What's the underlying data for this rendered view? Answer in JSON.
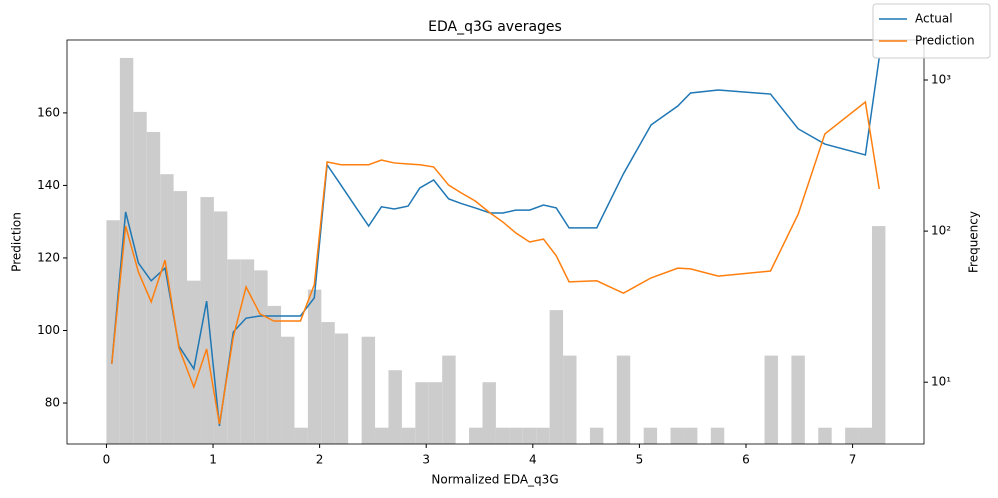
{
  "chart_data": {
    "type": "line",
    "title": "EDA_q3G averages",
    "x_label": "Normalized EDA_q3G",
    "y_label": "Prediction",
    "y2_label": "Frequency",
    "xlim": [
      -0.37,
      7.67
    ],
    "ylim": [
      68.7,
      180.1
    ],
    "y2lim": [
      3.9,
      1840
    ],
    "y2_log": true,
    "xticks": [
      0,
      1,
      2,
      3,
      4,
      5,
      6,
      7
    ],
    "yticks": [
      80,
      100,
      120,
      140,
      160
    ],
    "y2ticks": [
      {
        "value": 10,
        "label": "10¹"
      },
      {
        "value": 100,
        "label": "10²"
      },
      {
        "value": 1000,
        "label": "10³"
      }
    ],
    "legend_position": "top-right",
    "x": [
      0.05,
      0.18,
      0.3,
      0.42,
      0.55,
      0.68,
      0.82,
      0.94,
      1.06,
      1.19,
      1.31,
      1.44,
      1.57,
      1.82,
      1.95,
      2.07,
      2.2,
      2.33,
      2.46,
      2.58,
      2.7,
      2.83,
      2.94,
      3.07,
      3.21,
      3.33,
      3.46,
      3.6,
      3.72,
      3.84,
      3.97,
      4.1,
      4.22,
      4.34,
      4.6,
      4.85,
      5.11,
      5.36,
      5.48,
      5.74,
      6.23,
      6.49,
      6.74,
      7.12,
      7.25
    ],
    "series": [
      {
        "name": "Actual",
        "color": "#1f77b4",
        "values": [
          90.8,
          132.7,
          118.6,
          113.7,
          117.2,
          95.7,
          89.4,
          108.1,
          73.7,
          99.6,
          103.4,
          104.0,
          104.0,
          104.0,
          109.0,
          145.7,
          140.1,
          134.4,
          128.8,
          134.1,
          133.5,
          134.3,
          139.3,
          141.5,
          136.3,
          135.0,
          133.8,
          132.4,
          132.4,
          133.2,
          133.2,
          134.6,
          133.8,
          128.3,
          128.3,
          143.2,
          156.7,
          161.9,
          165.5,
          166.3,
          165.2,
          155.6,
          151.4,
          148.4,
          175.2
        ]
      },
      {
        "name": "Prediction",
        "color": "#ff7f0e",
        "values": [
          90.8,
          128.8,
          116.1,
          107.9,
          119.4,
          95.2,
          84.4,
          94.9,
          74.2,
          98.2,
          112.0,
          104.6,
          102.6,
          102.6,
          112.6,
          146.5,
          145.7,
          145.7,
          145.7,
          147.0,
          146.2,
          145.9,
          145.7,
          145.1,
          140.1,
          137.9,
          135.7,
          132.4,
          129.9,
          126.9,
          124.4,
          125.2,
          120.6,
          113.4,
          113.7,
          110.3,
          114.5,
          117.2,
          117.0,
          115.0,
          116.4,
          132.1,
          154.2,
          163.0,
          139.0
        ]
      }
    ],
    "histogram": {
      "type": "histogram",
      "axis": "y2",
      "color": "#cccccc",
      "bins": [
        0,
        0.126,
        0.252,
        0.378,
        0.504,
        0.63,
        0.756,
        0.882,
        1.008,
        1.134,
        1.26,
        1.386,
        1.512,
        1.638,
        1.764,
        1.89,
        2.016,
        2.142,
        2.268,
        2.394,
        2.52,
        2.646,
        2.772,
        2.898,
        3.024,
        3.15,
        3.276,
        3.402,
        3.528,
        3.654,
        3.78,
        3.906,
        4.032,
        4.158,
        4.284,
        4.41,
        4.536,
        4.662,
        4.788,
        4.914,
        5.04,
        5.166,
        5.292,
        5.418,
        5.544,
        5.67,
        5.796,
        5.922,
        6.048,
        6.174,
        6.3,
        6.426,
        6.552,
        6.678,
        6.804,
        6.93,
        7.056,
        7.182,
        7.308
      ],
      "counts": [
        118,
        1400,
        615,
        453,
        238,
        184,
        47,
        168,
        135,
        65,
        65,
        55,
        32,
        20,
        5,
        41,
        25,
        21,
        0,
        20,
        5,
        12,
        5,
        10,
        10,
        15,
        0,
        5,
        10,
        5,
        5,
        5,
        5,
        30,
        15,
        0,
        5,
        0,
        15,
        0,
        5,
        0,
        5,
        5,
        0,
        5,
        0,
        0,
        0,
        15,
        0,
        15,
        0,
        5,
        0,
        5,
        5,
        108
      ]
    }
  }
}
